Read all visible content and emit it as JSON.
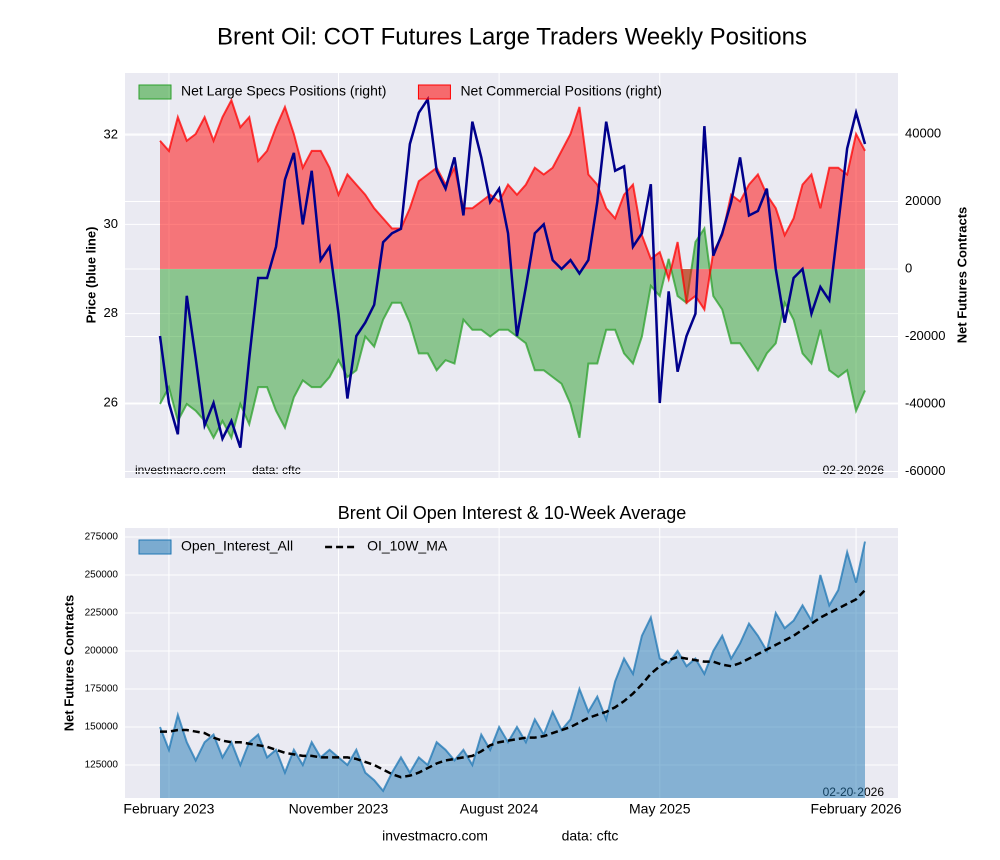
{
  "chart_data": [
    {
      "type": "combo",
      "title": "Brent Oil: COT Futures Large Traders Weekly Positions",
      "ylabel": "Price (blue line)",
      "y2label": "Net Futures Contracts",
      "watermark": "investmacro.com",
      "source": "data: cftc",
      "date_label": "02-20-2026",
      "ylim": [
        24.32,
        33.39
      ],
      "yticks": [
        26,
        28,
        30,
        32
      ],
      "y2lim": [
        -61926,
        58074
      ],
      "y2ticks": [
        -60000,
        -40000,
        -20000,
        0,
        20000,
        40000
      ],
      "grid": true,
      "legend": "upper left",
      "series": [
        {
          "name": "Net Large Specs Positions (right)",
          "type": "area",
          "axis": "y2",
          "color": "#2ca02c",
          "values": [
            -40000,
            -35000,
            -45000,
            -40000,
            -42000,
            -45000,
            -50000,
            -45000,
            -50000,
            -40000,
            -46000,
            -35000,
            -35000,
            -42000,
            -47000,
            -38000,
            -33000,
            -35000,
            -35000,
            -32000,
            -27000,
            -32000,
            -30000,
            -20000,
            -23000,
            -15000,
            -10000,
            -10000,
            -16000,
            -25000,
            -25000,
            -30000,
            -27000,
            -28000,
            -15000,
            -18000,
            -18000,
            -20000,
            -18000,
            -18000,
            -20000,
            -22000,
            -30000,
            -30000,
            -32000,
            -34000,
            -40000,
            -50000,
            -28000,
            -28000,
            -18000,
            -18000,
            -25000,
            -28000,
            -20000,
            -5000,
            -8000,
            3000,
            -8000,
            -10000,
            8000,
            12000,
            -8000,
            -12000,
            -22000,
            -22000,
            -26000,
            -30000,
            -25000,
            -22000,
            -10000,
            -15000,
            -25000,
            -28000,
            -18000,
            -30000,
            -32000,
            -30000,
            -42000,
            -36000
          ]
        },
        {
          "name": "Net Commercial Positions (right)",
          "type": "area",
          "axis": "y2",
          "color": "#ff0000",
          "values": [
            38000,
            35000,
            45000,
            38000,
            40000,
            45000,
            38000,
            45000,
            50000,
            42000,
            45000,
            32000,
            35000,
            42000,
            48000,
            40000,
            30000,
            35000,
            35000,
            30000,
            22000,
            28000,
            25000,
            22000,
            18000,
            15000,
            12000,
            12000,
            18000,
            26000,
            28000,
            30000,
            25000,
            30000,
            18000,
            18000,
            20000,
            22000,
            20000,
            25000,
            22000,
            25000,
            30000,
            28000,
            30000,
            35000,
            40000,
            48000,
            28000,
            25000,
            18000,
            15000,
            22000,
            25000,
            10000,
            3000,
            5000,
            -3000,
            8000,
            -10000,
            -8000,
            -12000,
            5000,
            10000,
            22000,
            20000,
            25000,
            28000,
            22000,
            18000,
            10000,
            15000,
            25000,
            28000,
            18000,
            30000,
            30000,
            28000,
            40000,
            35000
          ]
        },
        {
          "type": "line",
          "color": "#00008b",
          "values": [
            27.5,
            26.0,
            25.3,
            28.4,
            27.0,
            25.5,
            26.0,
            25.2,
            25.6,
            25.0,
            27.0,
            28.8,
            28.8,
            29.5,
            31.0,
            31.6,
            30.0,
            31.2,
            29.2,
            29.5,
            28.0,
            26.1,
            27.5,
            27.8,
            28.2,
            29.6,
            29.8,
            29.9,
            31.8,
            32.5,
            32.8,
            31.2,
            30.8,
            31.5,
            30.2,
            32.3,
            31.5,
            30.5,
            30.8,
            29.8,
            27.5,
            28.6,
            29.8,
            30.0,
            29.2,
            29.0,
            29.2,
            28.9,
            29.2,
            30.5,
            32.3,
            31.2,
            31.3,
            29.5,
            29.8,
            30.9,
            26.0,
            28.5,
            26.7,
            27.5,
            28.0,
            32.2,
            29.3,
            29.8,
            30.5,
            31.5,
            30.2,
            30.3,
            30.8,
            29.0,
            27.8,
            28.8,
            29.0,
            28.0,
            28.6,
            28.3,
            30.0,
            31.7,
            32.5,
            31.8
          ]
        }
      ]
    },
    {
      "type": "combo",
      "title": "Brent Oil Open Interest & 10-Week Average",
      "ylabel": "Net Futures Contracts",
      "date_label": "02-20-2026",
      "watermark": "investmacro.com",
      "source": "data: cftc",
      "categories": [
        null,
        "February 2023",
        null,
        null,
        null,
        null,
        null,
        null,
        null,
        null,
        null,
        null,
        null,
        null,
        null,
        null,
        null,
        null,
        null,
        null,
        "November 2023",
        null,
        null,
        null,
        null,
        null,
        null,
        null,
        null,
        null,
        null,
        null,
        null,
        null,
        null,
        null,
        null,
        null,
        "August 2024",
        null,
        null,
        null,
        null,
        null,
        null,
        null,
        null,
        null,
        null,
        null,
        null,
        null,
        null,
        null,
        null,
        null,
        "May 2025",
        null,
        null,
        null,
        null,
        null,
        null,
        null,
        null,
        null,
        null,
        null,
        null,
        null,
        null,
        null,
        null,
        null,
        null,
        null,
        null,
        null,
        "February 2026",
        null
      ],
      "ylim": [
        103300,
        280900
      ],
      "yticks": [
        125000,
        150000,
        175000,
        200000,
        225000,
        250000,
        275000
      ],
      "grid": true,
      "legend": "upper left",
      "series": [
        {
          "name": "Open_Interest_All",
          "type": "area",
          "color": "#1f77b4",
          "values": [
            150000,
            135000,
            158000,
            140000,
            128000,
            140000,
            145000,
            130000,
            140000,
            125000,
            140000,
            145000,
            130000,
            135000,
            120000,
            135000,
            125000,
            140000,
            130000,
            135000,
            130000,
            125000,
            135000,
            120000,
            115000,
            108000,
            120000,
            130000,
            120000,
            130000,
            125000,
            140000,
            135000,
            128000,
            135000,
            125000,
            145000,
            135000,
            150000,
            140000,
            150000,
            140000,
            155000,
            145000,
            160000,
            148000,
            155000,
            175000,
            160000,
            170000,
            155000,
            180000,
            195000,
            185000,
            210000,
            222000,
            195000,
            192000,
            200000,
            190000,
            195000,
            185000,
            200000,
            210000,
            195000,
            205000,
            218000,
            210000,
            200000,
            225000,
            215000,
            220000,
            230000,
            220000,
            250000,
            230000,
            240000,
            265000,
            245000,
            272000
          ]
        },
        {
          "name": "OI_10W_MA",
          "type": "line",
          "color": "#000000",
          "dashed": true,
          "values": [
            147000,
            147000,
            148000,
            148000,
            147000,
            146000,
            143000,
            141000,
            140000,
            140000,
            139000,
            138000,
            137000,
            135000,
            133000,
            132000,
            131000,
            131000,
            130000,
            130000,
            130000,
            130000,
            129000,
            127000,
            125000,
            122000,
            119000,
            117000,
            118000,
            120000,
            123000,
            126000,
            128000,
            129000,
            130000,
            131000,
            134000,
            138000,
            140000,
            141000,
            142000,
            143000,
            143000,
            144000,
            146000,
            148000,
            150000,
            153000,
            156000,
            158000,
            160000,
            163000,
            167000,
            172000,
            178000,
            185000,
            190000,
            194000,
            196000,
            195000,
            194000,
            193000,
            193000,
            191000,
            190000,
            192000,
            195000,
            198000,
            201000,
            204000,
            207000,
            210000,
            214000,
            218000,
            222000,
            225000,
            228000,
            231000,
            234000,
            240000
          ]
        }
      ]
    }
  ]
}
